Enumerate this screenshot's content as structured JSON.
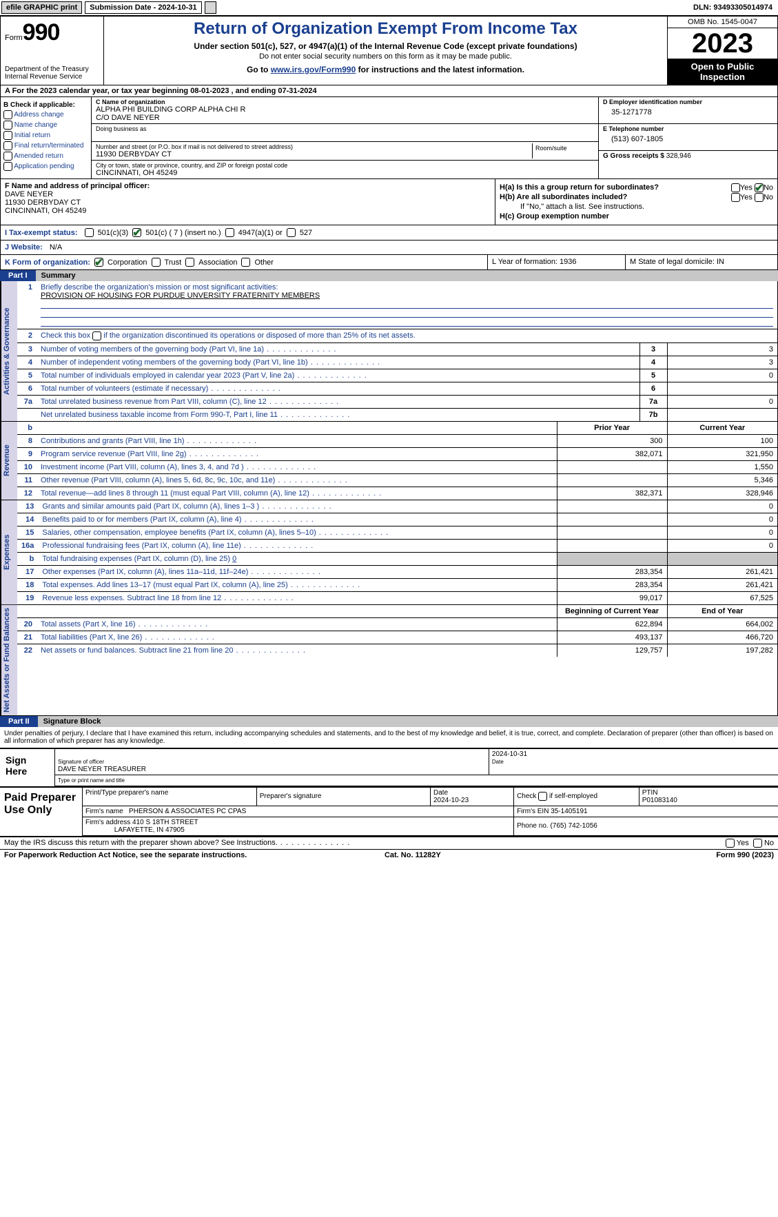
{
  "topbar": {
    "efile": "efile GRAPHIC print",
    "submission": "Submission Date - 2024-10-31",
    "dln": "DLN: 93493305014974"
  },
  "header": {
    "form_word": "Form",
    "form_no": "990",
    "dept": "Department of the Treasury Internal Revenue Service",
    "title": "Return of Organization Exempt From Income Tax",
    "sub": "Under section 501(c), 527, or 4947(a)(1) of the Internal Revenue Code (except private foundations)",
    "sub2": "Do not enter social security numbers on this form as it may be made public.",
    "goto_pre": "Go to ",
    "goto_link": "www.irs.gov/Form990",
    "goto_post": " for instructions and the latest information.",
    "omb": "OMB No. 1545-0047",
    "year": "2023",
    "open": "Open to Public Inspection"
  },
  "rowA": "A  For the 2023 calendar year, or tax year beginning 08-01-2023   , and ending 07-31-2024",
  "colB": {
    "title": "B Check if applicable:",
    "items": [
      "Address change",
      "Name change",
      "Initial return",
      "Final return/terminated",
      "Amended return",
      "Application pending"
    ]
  },
  "colC": {
    "name_lbl": "C Name of organization",
    "name": "ALPHA PHI BUILDING CORP ALPHA CHI R",
    "name2": "C/O DAVE NEYER",
    "dba_lbl": "Doing business as",
    "addr_lbl": "Number and street (or P.O. box if mail is not delivered to street address)",
    "addr": "11930 DERBYDAY CT",
    "room_lbl": "Room/suite",
    "city_lbl": "City or town, state or province, country, and ZIP or foreign postal code",
    "city": "CINCINNATI, OH  45249"
  },
  "colD": {
    "ein_lbl": "D Employer identification number",
    "ein": "35-1271778",
    "tel_lbl": "E Telephone number",
    "tel": "(513) 607-1805",
    "gross_lbl": "G Gross receipts $ ",
    "gross": "328,946"
  },
  "f": {
    "lbl": "F  Name and address of principal officer:",
    "l1": "DAVE NEYER",
    "l2": "11930 DERBYDAY CT",
    "l3": "CINCINNATI, OH  45249"
  },
  "h": {
    "a": "H(a)  Is this a group return for subordinates?",
    "b": "H(b)  Are all subordinates included?",
    "bnote": "If \"No,\" attach a list. See instructions.",
    "c": "H(c)  Group exemption number",
    "yes": "Yes",
    "no": "No"
  },
  "i": {
    "lbl": "I  Tax-exempt status:",
    "o1": "501(c)(3)",
    "o2": "501(c) ( 7 ) (insert no.)",
    "o3": "4947(a)(1) or",
    "o4": "527"
  },
  "j": {
    "lbl": "J  Website:",
    "val": "N/A"
  },
  "k": {
    "lbl": "K Form of organization:",
    "o1": "Corporation",
    "o2": "Trust",
    "o3": "Association",
    "o4": "Other"
  },
  "l": {
    "txt": "L Year of formation: 1936"
  },
  "m": {
    "txt": "M State of legal domicile: IN"
  },
  "parts": {
    "p1": "Part I",
    "p1t": "Summary",
    "p2": "Part II",
    "p2t": "Signature Block"
  },
  "summary": {
    "sec1": {
      "vlabel": "Activities & Governance",
      "l1_lbl": "Briefly describe the organization's mission or most significant activities:",
      "l1_val": "PROVISION OF HOUSING FOR PURDUE UNVERSITY FRATERNITY MEMBERS",
      "l2": "Check this box       if the organization discontinued its operations or disposed of more than 25% of its net assets.",
      "l3": "Number of voting members of the governing body (Part VI, line 1a)",
      "l4": "Number of independent voting members of the governing body (Part VI, line 1b)",
      "l5": "Total number of individuals employed in calendar year 2023 (Part V, line 2a)",
      "l6": "Total number of volunteers (estimate if necessary)",
      "l7a": "Total unrelated business revenue from Part VIII, column (C), line 12",
      "l7b": "Net unrelated business taxable income from Form 990-T, Part I, line 11",
      "v3": "3",
      "v4": "3",
      "v5": "0",
      "v6": "",
      "v7a": "0",
      "v7b": ""
    },
    "rev": {
      "vlabel": "Revenue",
      "hprior": "Prior Year",
      "hcurr": "Current Year",
      "rows": [
        {
          "n": "8",
          "d": "Contributions and grants (Part VIII, line 1h)",
          "p": "300",
          "c": "100"
        },
        {
          "n": "9",
          "d": "Program service revenue (Part VIII, line 2g)",
          "p": "382,071",
          "c": "321,950"
        },
        {
          "n": "10",
          "d": "Investment income (Part VIII, column (A), lines 3, 4, and 7d )",
          "p": "",
          "c": "1,550"
        },
        {
          "n": "11",
          "d": "Other revenue (Part VIII, column (A), lines 5, 6d, 8c, 9c, 10c, and 11e)",
          "p": "",
          "c": "5,346"
        },
        {
          "n": "12",
          "d": "Total revenue—add lines 8 through 11 (must equal Part VIII, column (A), line 12)",
          "p": "382,371",
          "c": "328,946"
        }
      ]
    },
    "exp": {
      "vlabel": "Expenses",
      "rows": [
        {
          "n": "13",
          "d": "Grants and similar amounts paid (Part IX, column (A), lines 1–3 )",
          "p": "",
          "c": "0"
        },
        {
          "n": "14",
          "d": "Benefits paid to or for members (Part IX, column (A), line 4)",
          "p": "",
          "c": "0"
        },
        {
          "n": "15",
          "d": "Salaries, other compensation, employee benefits (Part IX, column (A), lines 5–10)",
          "p": "",
          "c": "0"
        },
        {
          "n": "16a",
          "d": "Professional fundraising fees (Part IX, column (A), line 11e)",
          "p": "",
          "c": "0"
        }
      ],
      "l16b": "Total fundraising expenses (Part IX, column (D), line 25) ",
      "l16b_v": "0",
      "rows2": [
        {
          "n": "17",
          "d": "Other expenses (Part IX, column (A), lines 11a–11d, 11f–24e)",
          "p": "283,354",
          "c": "261,421"
        },
        {
          "n": "18",
          "d": "Total expenses. Add lines 13–17 (must equal Part IX, column (A), line 25)",
          "p": "283,354",
          "c": "261,421"
        },
        {
          "n": "19",
          "d": "Revenue less expenses. Subtract line 18 from line 12",
          "p": "99,017",
          "c": "67,525"
        }
      ]
    },
    "net": {
      "vlabel": "Net Assets or Fund Balances",
      "hbeg": "Beginning of Current Year",
      "hend": "End of Year",
      "rows": [
        {
          "n": "20",
          "d": "Total assets (Part X, line 16)",
          "p": "622,894",
          "c": "664,002"
        },
        {
          "n": "21",
          "d": "Total liabilities (Part X, line 26)",
          "p": "493,137",
          "c": "466,720"
        },
        {
          "n": "22",
          "d": "Net assets or fund balances. Subtract line 21 from line 20",
          "p": "129,757",
          "c": "197,282"
        }
      ]
    }
  },
  "sig": {
    "decl": "Under penalties of perjury, I declare that I have examined this return, including accompanying schedules and statements, and to the best of my knowledge and belief, it is true, correct, and complete. Declaration of preparer (other than officer) is based on all information of which preparer has any knowledge.",
    "sign_here": "Sign Here",
    "sig_lbl": "Signature of officer",
    "sig_name": "DAVE NEYER  TREASURER",
    "date_lbl": "Date",
    "date": "2024-10-31",
    "type_lbl": "Type or print name and title"
  },
  "paid": {
    "title": "Paid Preparer Use Only",
    "pname_lbl": "Print/Type preparer's name",
    "psig_lbl": "Preparer's signature",
    "pdate_lbl": "Date",
    "pdate": "2024-10-23",
    "check_lbl": "Check         if self-employed",
    "ptin_lbl": "PTIN",
    "ptin": "P01083140",
    "firm_lbl": "Firm's name",
    "firm": "PHERSON & ASSOCIATES PC CPAS",
    "fein_lbl": "Firm's EIN",
    "fein": "35-1405191",
    "faddr_lbl": "Firm's address",
    "faddr1": "410 S 18TH STREET",
    "faddr2": "LAFAYETTE, IN  47905",
    "fphone_lbl": "Phone no.",
    "fphone": "(765) 742-1056"
  },
  "foot": {
    "may": "May the IRS discuss this return with the preparer shown above? See Instructions.",
    "yes": "Yes",
    "no": "No",
    "pra": "For Paperwork Reduction Act Notice, see the separate instructions.",
    "cat": "Cat. No. 11282Y",
    "form": "Form 990 (2023)"
  },
  "colors": {
    "blue": "#1a3f8f",
    "lav": "#d8d4e8",
    "grey": "#c7c7c7"
  }
}
